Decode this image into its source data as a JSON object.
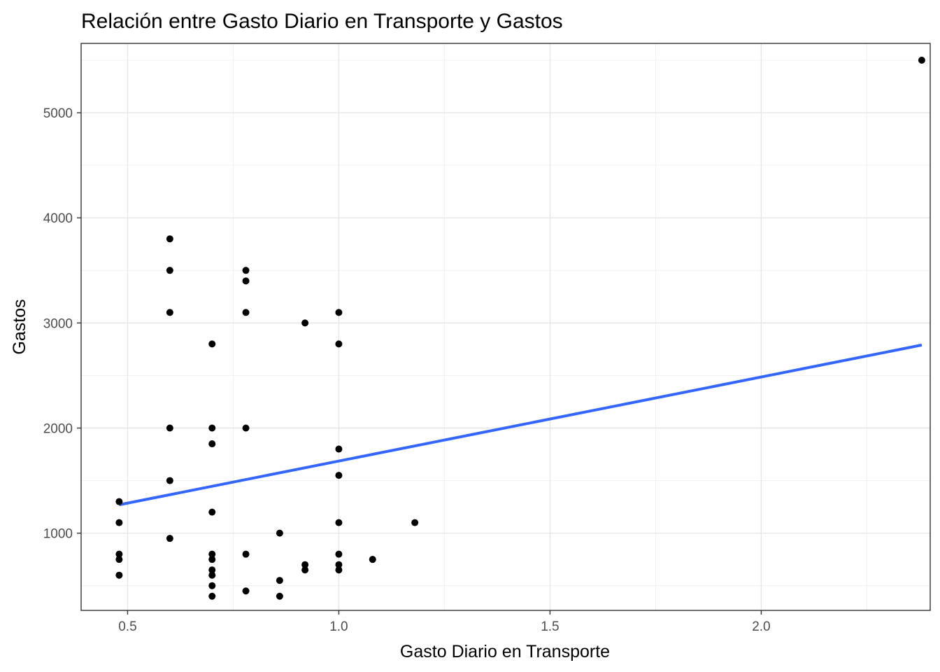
{
  "chart_data": {
    "type": "scatter",
    "title": "Relación entre Gasto Diario en Transporte y Gastos",
    "xlabel": "Gasto Diario en Transporte",
    "ylabel": "Gastos",
    "xlim": [
      0.39,
      2.4
    ],
    "ylim": [
      265,
      5660
    ],
    "x_ticks": [
      0.5,
      1.0,
      1.5,
      2.0
    ],
    "x_tick_labels": [
      "0.5",
      "1.0",
      "1.5",
      "2.0"
    ],
    "y_ticks": [
      1000,
      2000,
      3000,
      4000,
      5000
    ],
    "y_tick_labels": [
      "1000",
      "2000",
      "3000",
      "4000",
      "5000"
    ],
    "grid": true,
    "point_color": "#000000",
    "trend_color": "#3366FF",
    "points": [
      {
        "x": 0.48,
        "y": 1300
      },
      {
        "x": 0.48,
        "y": 1100
      },
      {
        "x": 0.48,
        "y": 800
      },
      {
        "x": 0.48,
        "y": 750
      },
      {
        "x": 0.48,
        "y": 600
      },
      {
        "x": 0.6,
        "y": 3800
      },
      {
        "x": 0.6,
        "y": 3500
      },
      {
        "x": 0.6,
        "y": 3100
      },
      {
        "x": 0.6,
        "y": 2000
      },
      {
        "x": 0.6,
        "y": 1500
      },
      {
        "x": 0.6,
        "y": 950
      },
      {
        "x": 0.7,
        "y": 2800
      },
      {
        "x": 0.7,
        "y": 2000
      },
      {
        "x": 0.7,
        "y": 1850
      },
      {
        "x": 0.7,
        "y": 1200
      },
      {
        "x": 0.7,
        "y": 800
      },
      {
        "x": 0.7,
        "y": 750
      },
      {
        "x": 0.7,
        "y": 650
      },
      {
        "x": 0.7,
        "y": 600
      },
      {
        "x": 0.7,
        "y": 500
      },
      {
        "x": 0.7,
        "y": 400
      },
      {
        "x": 0.78,
        "y": 3500
      },
      {
        "x": 0.78,
        "y": 3400
      },
      {
        "x": 0.78,
        "y": 3100
      },
      {
        "x": 0.78,
        "y": 2000
      },
      {
        "x": 0.78,
        "y": 800
      },
      {
        "x": 0.78,
        "y": 450
      },
      {
        "x": 0.86,
        "y": 1000
      },
      {
        "x": 0.86,
        "y": 550
      },
      {
        "x": 0.86,
        "y": 400
      },
      {
        "x": 0.92,
        "y": 3000
      },
      {
        "x": 0.92,
        "y": 700
      },
      {
        "x": 0.92,
        "y": 650
      },
      {
        "x": 1.0,
        "y": 3100
      },
      {
        "x": 1.0,
        "y": 2800
      },
      {
        "x": 1.0,
        "y": 1800
      },
      {
        "x": 1.0,
        "y": 1550
      },
      {
        "x": 1.0,
        "y": 1100
      },
      {
        "x": 1.0,
        "y": 800
      },
      {
        "x": 1.0,
        "y": 700
      },
      {
        "x": 1.0,
        "y": 650
      },
      {
        "x": 1.08,
        "y": 750
      },
      {
        "x": 1.18,
        "y": 1100
      },
      {
        "x": 2.38,
        "y": 5500
      }
    ],
    "trend_line": {
      "x": [
        0.48,
        2.38
      ],
      "y": [
        1270,
        2790
      ]
    }
  }
}
